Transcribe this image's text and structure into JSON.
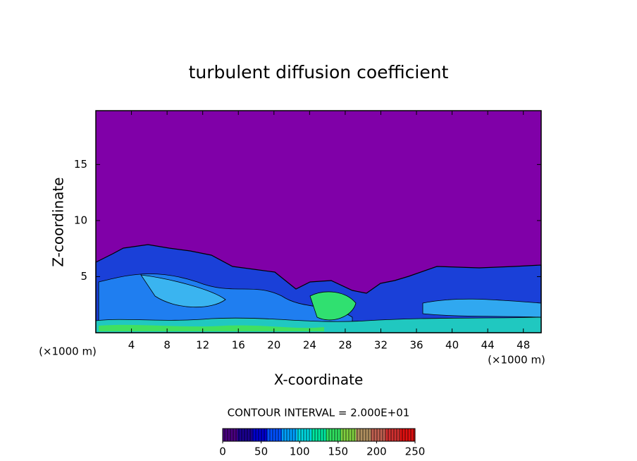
{
  "chart_data": {
    "type": "contour",
    "title": "turbulent diffusion coefficient",
    "x_label": "X-coordinate",
    "y_label": "Z-coordinate",
    "x_unit": "(×1000 m)",
    "y_unit": "(×1000 m)",
    "xlim": [
      0,
      50
    ],
    "xticks": [
      4,
      8,
      12,
      16,
      20,
      24,
      28,
      32,
      36,
      40,
      44,
      48
    ],
    "ylim": [
      0,
      19.8
    ],
    "yticks": [
      5,
      10,
      15
    ],
    "annotation": "CONTOUR INTERVAL = 2.000E+01",
    "background_color": "#8000a8",
    "colorbar": {
      "lim": [
        0,
        250
      ],
      "ticks": [
        0,
        50,
        100,
        150,
        200,
        250
      ],
      "colors": [
        "#4b0082",
        "#1a0090",
        "#0000d0",
        "#0050ff",
        "#00a0ff",
        "#00d8e0",
        "#00e8a0",
        "#30e060",
        "#80d040",
        "#b09060",
        "#c06050",
        "#d03030",
        "#e01010"
      ]
    }
  }
}
